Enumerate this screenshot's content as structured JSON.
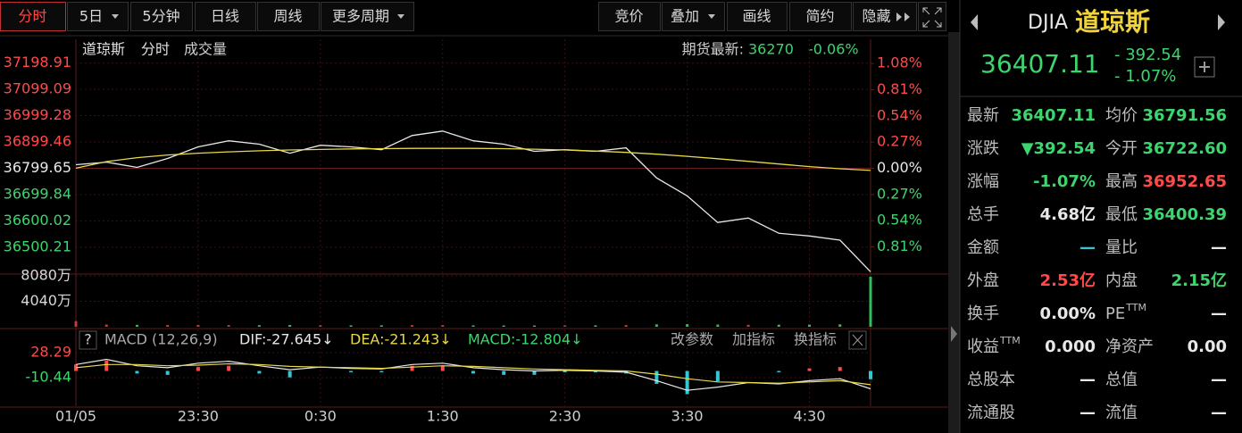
{
  "toolbar": {
    "left": [
      "分时",
      "5日",
      "5分钟",
      "日线",
      "周线",
      "更多周期"
    ],
    "right": [
      "竞价",
      "叠加",
      "画线",
      "简约",
      "隐藏"
    ]
  },
  "legend": {
    "name": "道琼斯",
    "period": "分时",
    "volume": "成交量",
    "futures_label": "期货最新:",
    "futures_price": "36270",
    "futures_change": "-0.06%"
  },
  "macd_header": {
    "help": "?",
    "name": "MACD (12,26,9)",
    "dif": "DIF:-27.645↓",
    "dea": "DEA:-21.243↓",
    "macd": "MACD:-12.804↓",
    "buttons": [
      "改参数",
      "加指标",
      "换指标"
    ]
  },
  "chart_data": [
    {
      "type": "line",
      "x": [
        "22:30",
        "22:45",
        "23:00",
        "23:15",
        "23:30",
        "23:45",
        "0:00",
        "0:15",
        "0:30",
        "0:45",
        "1:00",
        "1:15",
        "1:30",
        "1:45",
        "2:00",
        "2:15",
        "2:30",
        "2:45",
        "3:00",
        "3:15",
        "3:30",
        "3:45",
        "4:00",
        "4:15",
        "4:30",
        "4:45",
        "5:00"
      ],
      "series": [
        {
          "color": "#e8e8e8",
          "values": [
            36813,
            36823,
            36803,
            36837,
            36881,
            36904,
            36891,
            36857,
            36887,
            36881,
            36870,
            36924,
            36941,
            36904,
            36891,
            36864,
            36870,
            36864,
            36877,
            36763,
            36695,
            36594,
            36611,
            36553,
            36543,
            36527,
            36407.11
          ]
        },
        {
          "color": "#e8d84a",
          "values": [
            36800,
            36825,
            36840,
            36850,
            36857,
            36862,
            36866,
            36869,
            36871,
            36873,
            36874,
            36875,
            36875,
            36875,
            36874,
            36872,
            36869,
            36865,
            36860,
            36853,
            36845,
            36836,
            36826,
            36816,
            36806,
            36798,
            36791.56
          ]
        }
      ],
      "ylim": [
        36405,
        37245
      ],
      "yticks": [
        37198.91,
        37099.09,
        36999.28,
        36899.46,
        36799.65,
        36699.84,
        36600.02,
        36500.21
      ],
      "y2lim": [
        -1.0724,
        1.2103
      ],
      "y2ticks": [
        {
          "value": 1.08,
          "label": "1.08%"
        },
        {
          "value": 0.81,
          "label": "0.81%"
        },
        {
          "value": 0.54,
          "label": "0.54%"
        },
        {
          "value": 0.27,
          "label": "0.27%"
        },
        {
          "value": 0,
          "label": "0.00%"
        },
        {
          "value": -0.27,
          "label": "0.27%"
        },
        {
          "value": -0.54,
          "label": "0.54%"
        },
        {
          "value": -0.81,
          "label": "0.81%"
        }
      ],
      "xticks": [
        {
          "value": "22:30",
          "label": "01/05"
        },
        "23:30",
        "0:30",
        "1:30",
        "2:30",
        "3:30",
        "4:30"
      ],
      "grid": true
    },
    {
      "type": "bar",
      "values": [
        900,
        350,
        300,
        280,
        300,
        260,
        250,
        280,
        240,
        220,
        230,
        260,
        250,
        220,
        210,
        200,
        210,
        230,
        260,
        380,
        420,
        350,
        320,
        330,
        340,
        380,
        7950
      ],
      "ylim": [
        0,
        8220
      ],
      "yticks": [
        {
          "value": 8080,
          "label": "8080万"
        },
        {
          "value": 4040,
          "label": "4040万"
        }
      ],
      "colors": {
        "up": "#c83a3a",
        "down": "#2fbf5a"
      }
    },
    {
      "type": "macd",
      "series": [
        {
          "color": "#e8e8e8",
          "values": [
            10,
            18,
            8,
            5,
            12,
            15,
            8,
            2,
            6,
            4,
            3,
            10,
            12,
            5,
            2,
            0,
            1,
            0,
            -2,
            -15,
            -30,
            -25,
            -18,
            -20,
            -15,
            -12,
            -27.645
          ]
        },
        {
          "color": "#e8d84a",
          "values": [
            5,
            10,
            10,
            8,
            9,
            11,
            10,
            7,
            6,
            5,
            4,
            6,
            8,
            7,
            5,
            3,
            2,
            1,
            0,
            -5,
            -12,
            -17,
            -18,
            -19,
            -17,
            -15,
            -21.243
          ]
        }
      ],
      "histogram": [
        10,
        16,
        -4,
        -6,
        6,
        8,
        -4,
        -10,
        0,
        -2,
        -2,
        8,
        8,
        -4,
        -6,
        -6,
        -2,
        -2,
        -4,
        -20,
        -36,
        -16,
        0,
        -2,
        4,
        6,
        -12.804
      ],
      "colors": {
        "up": "#ff4a4a",
        "down": "#33c7d6"
      },
      "ylim": [
        -54.6,
        31.1
      ],
      "yticks": [
        28.29,
        -10.44
      ]
    }
  ],
  "quote": {
    "code": "DJIA",
    "name": "道琼斯",
    "price": "36407.11",
    "change": "- 392.54",
    "change_pct": "- 1.07%"
  },
  "stats": [
    [
      {
        "label": "最新",
        "value": "36407.11",
        "color": "#3dd56d"
      },
      {
        "label": "均价",
        "value": "36791.56",
        "color": "#3dd56d"
      }
    ],
    [
      {
        "label": "涨跌",
        "value": "▼392.54",
        "color": "#3dd56d"
      },
      {
        "label": "今开",
        "value": "36722.60",
        "color": "#3dd56d"
      }
    ],
    [
      {
        "label": "涨幅",
        "value": "-1.07%",
        "color": "#3dd56d"
      },
      {
        "label": "最高",
        "value": "36952.65",
        "color": "#ff4a4a"
      }
    ],
    [
      {
        "label": "总手",
        "value": "4.68亿",
        "color": "#e8e8e8"
      },
      {
        "label": "最低",
        "value": "36400.39",
        "color": "#3dd56d"
      }
    ],
    [
      {
        "label": "金额",
        "value": "—",
        "color": "#33c7d6"
      },
      {
        "label": "量比",
        "value": "—",
        "color": "#e8e8e8"
      }
    ],
    [
      {
        "label": "外盘",
        "value": "2.53亿",
        "color": "#ff4a4a"
      },
      {
        "label": "内盘",
        "value": "2.15亿",
        "color": "#3dd56d"
      }
    ],
    [
      {
        "label": "换手",
        "value": "0.00%",
        "color": "#e8e8e8"
      },
      {
        "label": "PE",
        "sup": "TTM",
        "value": "—",
        "color": "#e8e8e8"
      }
    ],
    [
      {
        "label": "收益",
        "sup": "TTM",
        "value": "0.000",
        "color": "#e8e8e8"
      },
      {
        "label": "净资产",
        "value": "0.00",
        "color": "#e8e8e8"
      }
    ],
    [
      {
        "label": "总股本",
        "value": "—",
        "color": "#e8e8e8"
      },
      {
        "label": "总值",
        "value": "—",
        "color": "#e8e8e8"
      }
    ],
    [
      {
        "label": "流通股",
        "value": "—",
        "color": "#e8e8e8"
      },
      {
        "label": "流值",
        "value": "—",
        "color": "#e8e8e8"
      }
    ]
  ]
}
